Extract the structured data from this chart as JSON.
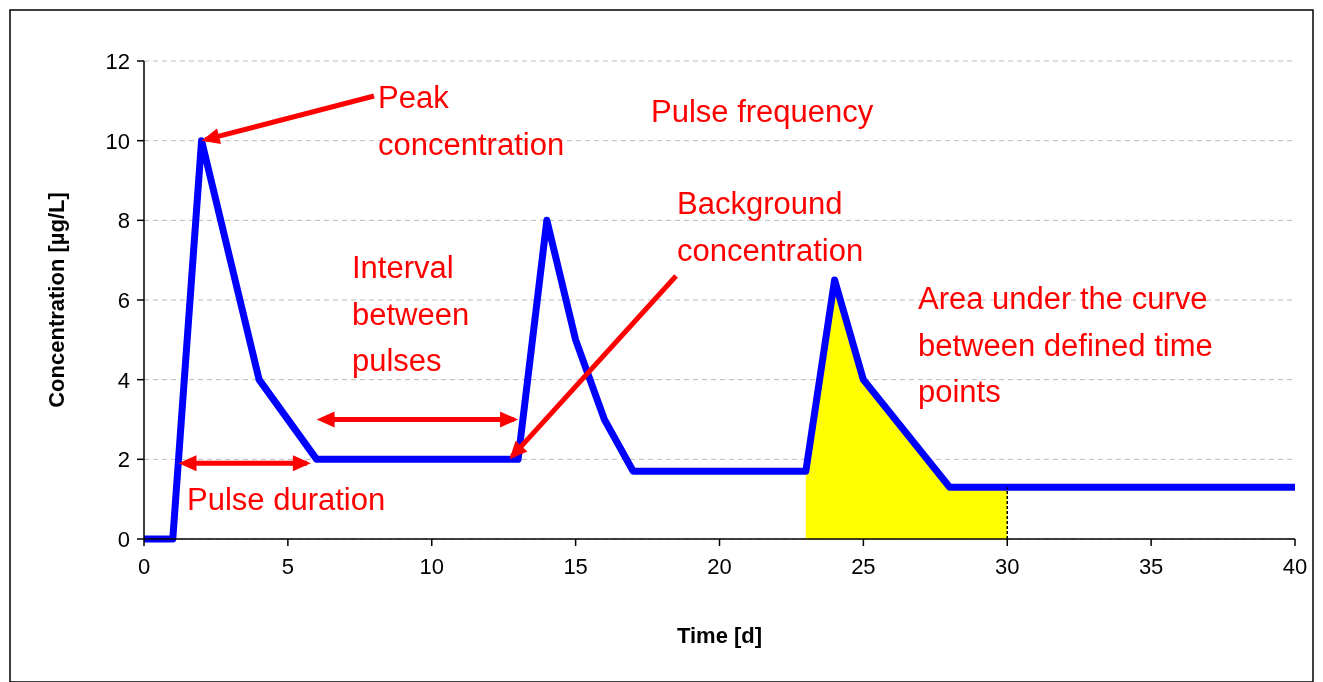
{
  "chart_data": {
    "type": "line",
    "xlabel": "Time [d]",
    "ylabel": "Concentration [µg/L]",
    "xlim": [
      0,
      40
    ],
    "xticks": [
      0,
      5,
      10,
      15,
      20,
      25,
      30,
      35,
      40
    ],
    "ylim": [
      0,
      12
    ],
    "yticks": [
      0,
      2,
      4,
      6,
      8,
      10,
      12
    ],
    "grid": "y",
    "marker": "none",
    "series": [
      {
        "type": "area",
        "color": "#ffff00",
        "x": [
          23,
          24,
          25,
          28,
          30
        ],
        "values": [
          1.7,
          6.5,
          4,
          1.3,
          1.3
        ]
      },
      {
        "color": "#0000ff",
        "line_style": "solid",
        "x": [
          0,
          1,
          2,
          4,
          6,
          13,
          14,
          15,
          16,
          17,
          23,
          24,
          25,
          28,
          40
        ],
        "values": [
          0,
          0,
          10,
          4,
          2,
          2,
          8,
          5,
          3,
          1.7,
          1.7,
          6.5,
          4,
          1.3,
          1.3
        ]
      },
      {
        "color": "#000000",
        "line_style": "dashed",
        "x": [
          30,
          30
        ],
        "values": [
          0,
          1.3
        ]
      }
    ],
    "annotations": [
      {
        "text": "Peak concentration",
        "x": 2,
        "y": 10
      },
      "Pulse frequency",
      {
        "text": "Background concentration",
        "x": 12.7,
        "y": 2
      },
      "Interval between pulses",
      "Area under the curve between defined time points",
      "Pulse duration"
    ]
  }
}
